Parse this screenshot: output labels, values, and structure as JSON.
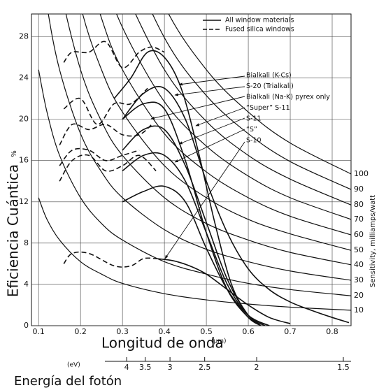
{
  "chart_data": {
    "type": "line",
    "y_label": "Eficiencia Cuántica",
    "y_unit": "%",
    "x_label": "Longitud de onda",
    "x_unit": "(µm)",
    "y2_label": "Sensitivity, milliamps/watt",
    "energy_unit": "(eV)",
    "energy_label": "Energía del fotón",
    "energy_ticks": [
      4,
      3.5,
      3,
      2.5,
      2,
      1.5
    ],
    "xlim": [
      0.083,
      0.845
    ],
    "ylim": [
      0,
      30.2
    ],
    "xticks": [
      0.1,
      0.2,
      0.3,
      0.4,
      0.5,
      0.6,
      0.7,
      0.8
    ],
    "yticks": [
      0,
      4,
      8,
      12,
      16,
      20,
      24,
      28
    ],
    "grid": true,
    "legend": [
      {
        "name": "All window materials",
        "dash": false
      },
      {
        "name": "Fused silica windows",
        "dash": true
      }
    ],
    "series": [
      {
        "name": "Bialkali (K-Cs)",
        "dash": false,
        "x": [
          0.28,
          0.32,
          0.36,
          0.4,
          0.44,
          0.48,
          0.52,
          0.56,
          0.6,
          0.63
        ],
        "values": [
          22,
          24,
          26.5,
          26,
          23,
          17,
          10,
          4,
          1,
          0
        ]
      },
      {
        "name": "S-20 (Trialkali)",
        "dash": false,
        "x": [
          0.3,
          0.35,
          0.4,
          0.45,
          0.5,
          0.55,
          0.6,
          0.65,
          0.7,
          0.75,
          0.8,
          0.84
        ],
        "values": [
          20,
          22.5,
          23,
          20,
          14,
          9,
          5.5,
          3.5,
          2.3,
          1.5,
          0.8,
          0.3
        ]
      },
      {
        "name": "Bialkali (Na-K) pyrex only",
        "dash": false,
        "x": [
          0.3,
          0.35,
          0.4,
          0.45,
          0.5,
          0.55,
          0.6,
          0.63
        ],
        "values": [
          20,
          21.5,
          21,
          16,
          9,
          3.5,
          0.8,
          0
        ]
      },
      {
        "name": "“Super” S-11",
        "dash": false,
        "x": [
          0.3,
          0.35,
          0.4,
          0.45,
          0.5,
          0.55,
          0.6,
          0.64
        ],
        "values": [
          17,
          19,
          19,
          15.5,
          10,
          4.5,
          1,
          0
        ]
      },
      {
        "name": "S-11",
        "dash": false,
        "x": [
          0.3,
          0.35,
          0.4,
          0.45,
          0.5,
          0.55,
          0.6,
          0.65
        ],
        "values": [
          15,
          16.5,
          16.5,
          14,
          9,
          4,
          1,
          0
        ]
      },
      {
        "name": "“S”",
        "dash": false,
        "x": [
          0.3,
          0.35,
          0.4,
          0.45,
          0.5,
          0.55,
          0.6,
          0.65
        ],
        "values": [
          12,
          13,
          13.5,
          12,
          7.5,
          3.5,
          1,
          0
        ]
      },
      {
        "name": "S-10",
        "dash": false,
        "x": [
          0.38,
          0.42,
          0.46,
          0.5,
          0.55,
          0.6,
          0.65,
          0.7
        ],
        "values": [
          6.5,
          6.3,
          5.8,
          5,
          3.5,
          2,
          0.8,
          0.2
        ]
      },
      {
        "dash": true,
        "x": [
          0.16,
          0.18,
          0.22,
          0.26,
          0.3,
          0.34,
          0.37,
          0.4
        ],
        "values": [
          25.5,
          26.5,
          26.5,
          27.5,
          25,
          26.5,
          27,
          26.5
        ]
      },
      {
        "dash": true,
        "x": [
          0.16,
          0.2,
          0.24,
          0.28,
          0.32,
          0.36
        ],
        "values": [
          21,
          22,
          19.5,
          21.5,
          21.5,
          23
        ]
      },
      {
        "dash": true,
        "x": [
          0.15,
          0.18,
          0.22,
          0.26,
          0.3,
          0.34,
          0.37
        ],
        "values": [
          17.5,
          19.5,
          19,
          19.5,
          18.5,
          18.5,
          19.5
        ]
      },
      {
        "dash": true,
        "x": [
          0.15,
          0.18,
          0.22,
          0.26,
          0.3,
          0.34
        ],
        "values": [
          15.5,
          17,
          17,
          16,
          16.5,
          17
        ]
      },
      {
        "dash": true,
        "x": [
          0.15,
          0.18,
          0.22,
          0.26,
          0.3,
          0.34,
          0.38
        ],
        "values": [
          14,
          16,
          16.5,
          15,
          15.5,
          16.5,
          15
        ]
      },
      {
        "dash": true,
        "x": [
          0.16,
          0.18,
          0.22,
          0.28,
          0.32,
          0.35,
          0.38
        ],
        "values": [
          6,
          7,
          7,
          5.8,
          5.8,
          6.5,
          6.5
        ]
      }
    ],
    "iso_lines": [
      {
        "label": 10,
        "x": [
          0.1,
          0.12,
          0.15,
          0.2,
          0.25,
          0.3,
          0.4,
          0.5,
          0.6,
          0.7,
          0.845
        ],
        "values": [
          12.4,
          10.3,
          8.3,
          6.2,
          5.0,
          4.1,
          3.1,
          2.5,
          2.1,
          1.8,
          1.5
        ]
      },
      {
        "label": 20,
        "x": [
          0.1,
          0.12,
          0.15,
          0.2,
          0.25,
          0.3,
          0.4,
          0.5,
          0.6,
          0.7,
          0.845
        ],
        "values": [
          24.8,
          20.7,
          16.5,
          12.4,
          9.9,
          8.3,
          6.2,
          5.0,
          4.1,
          3.5,
          2.9
        ]
      },
      {
        "label": 30,
        "x": [
          0.1,
          0.12,
          0.15,
          0.2,
          0.25,
          0.3,
          0.4,
          0.5,
          0.6,
          0.7,
          0.845
        ],
        "values": [
          37.2,
          31.0,
          24.8,
          18.6,
          14.9,
          12.4,
          9.3,
          7.4,
          6.2,
          5.3,
          4.4
        ]
      },
      {
        "label": 40,
        "x": [
          0.1,
          0.12,
          0.15,
          0.2,
          0.25,
          0.3,
          0.4,
          0.5,
          0.6,
          0.7,
          0.845
        ],
        "values": [
          49.6,
          41.3,
          33.1,
          24.8,
          19.8,
          16.5,
          12.4,
          9.9,
          8.3,
          7.1,
          5.9
        ]
      },
      {
        "label": 50,
        "x": [
          0.1,
          0.12,
          0.15,
          0.2,
          0.25,
          0.3,
          0.4,
          0.5,
          0.6,
          0.7,
          0.845
        ],
        "values": [
          62,
          51.7,
          41.3,
          31,
          24.8,
          20.7,
          15.5,
          12.4,
          10.3,
          8.9,
          7.3
        ]
      },
      {
        "label": 60,
        "x": [
          0.1,
          0.12,
          0.15,
          0.2,
          0.25,
          0.3,
          0.4,
          0.5,
          0.6,
          0.7,
          0.845
        ],
        "values": [
          74.4,
          62,
          49.6,
          37.2,
          29.8,
          24.8,
          18.6,
          14.9,
          12.4,
          10.6,
          8.8
        ]
      },
      {
        "label": 70,
        "x": [
          0.1,
          0.12,
          0.15,
          0.2,
          0.25,
          0.3,
          0.4,
          0.5,
          0.6,
          0.7,
          0.845
        ],
        "values": [
          86.8,
          72.3,
          57.9,
          43.4,
          34.7,
          28.9,
          21.7,
          17.4,
          14.5,
          12.4,
          10.3
        ]
      },
      {
        "label": 80,
        "x": [
          0.1,
          0.12,
          0.15,
          0.2,
          0.25,
          0.3,
          0.4,
          0.5,
          0.6,
          0.7,
          0.845
        ],
        "values": [
          99.2,
          82.7,
          66.1,
          49.6,
          39.7,
          33.1,
          24.8,
          19.8,
          16.5,
          14.2,
          11.7
        ]
      },
      {
        "label": 90,
        "x": [
          0.1,
          0.12,
          0.15,
          0.2,
          0.25,
          0.3,
          0.4,
          0.5,
          0.6,
          0.7,
          0.845
        ],
        "values": [
          111.6,
          93,
          74.4,
          55.8,
          44.6,
          37.2,
          27.9,
          22.3,
          18.6,
          15.9,
          13.2
        ]
      },
      {
        "label": 100,
        "x": [
          0.1,
          0.12,
          0.15,
          0.2,
          0.25,
          0.3,
          0.4,
          0.5,
          0.6,
          0.7,
          0.845
        ],
        "values": [
          124,
          103.3,
          82.7,
          62,
          49.6,
          41.3,
          31,
          24.8,
          20.7,
          17.7,
          14.7
        ]
      }
    ]
  }
}
